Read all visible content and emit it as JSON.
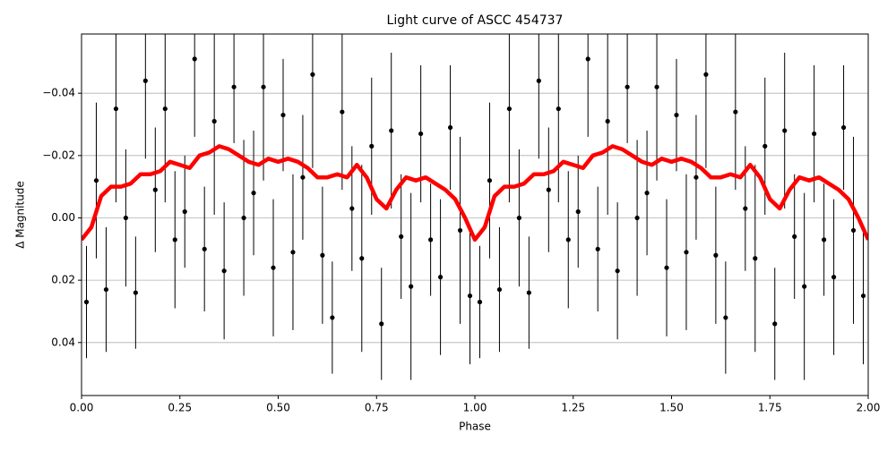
{
  "chart_data": {
    "type": "scatter",
    "title": "Light curve of ASCC 454737",
    "xlabel": "Phase",
    "ylabel": "Δ Magnitude",
    "xlim": [
      0,
      2
    ],
    "ylim": [
      -0.059,
      0.057
    ],
    "invert_y": true,
    "grid": true,
    "xticks": [
      {
        "value": 0,
        "label": "0.00"
      },
      0.25,
      {
        "value": 0.5,
        "label": "0.50"
      },
      0.75,
      {
        "value": 1,
        "label": "1.00"
      },
      1.25,
      {
        "value": 1.5,
        "label": "1.50"
      },
      1.75,
      {
        "value": 2,
        "label": "2.00"
      }
    ],
    "yticks": [
      {
        "value": -0.04,
        "label": "−0.04"
      },
      {
        "value": -0.02,
        "label": "−0.02"
      },
      {
        "value": 0,
        "label": "0.00"
      },
      0.02,
      0.04
    ],
    "points": {
      "color": "#000000",
      "x": [
        0.0125,
        0.0375,
        0.0625,
        0.0875,
        0.1125,
        0.1375,
        0.1625,
        0.1875,
        0.2125,
        0.2375,
        0.2625,
        0.2875,
        0.3125,
        0.3375,
        0.3625,
        0.3875,
        0.4125,
        0.4375,
        0.4625,
        0.4875,
        0.5125,
        0.5375,
        0.5625,
        0.5875,
        0.6125,
        0.6375,
        0.6625,
        0.6875,
        0.7125,
        0.7375,
        0.7625,
        0.7875,
        0.8125,
        0.8375,
        0.8625,
        0.8875,
        0.9125,
        0.9375,
        0.9625,
        0.9875,
        1.0125,
        1.0375,
        1.0625,
        1.0875,
        1.1125,
        1.1375,
        1.1625,
        1.1875,
        1.2125,
        1.2375,
        1.2625,
        1.2875,
        1.3125,
        1.3375,
        1.3625,
        1.3875,
        1.4125,
        1.4375,
        1.4625,
        1.4875,
        1.5125,
        1.5375,
        1.5625,
        1.5875,
        1.6125,
        1.6375,
        1.6625,
        1.6875,
        1.7125,
        1.7375,
        1.7625,
        1.7875,
        1.8125,
        1.8375,
        1.8625,
        1.8875,
        1.9125,
        1.9375,
        1.9625,
        1.9875
      ],
      "values": [
        0.027,
        -0.012,
        0.023,
        -0.035,
        0.0,
        0.024,
        -0.044,
        -0.009,
        -0.035,
        0.007,
        -0.002,
        -0.051,
        0.01,
        -0.031,
        0.017,
        -0.042,
        0.0,
        -0.008,
        -0.042,
        0.016,
        -0.033,
        0.011,
        -0.013,
        -0.046,
        0.012,
        0.032,
        -0.034,
        -0.003,
        0.013,
        -0.023,
        0.034,
        -0.028,
        0.006,
        0.022,
        -0.027,
        0.007,
        0.019,
        -0.029,
        0.004,
        0.025,
        0.027,
        -0.012,
        0.023,
        -0.035,
        0.0,
        0.024,
        -0.044,
        -0.009,
        -0.035,
        0.007,
        -0.002,
        -0.051,
        0.01,
        -0.031,
        0.017,
        -0.042,
        0.0,
        -0.008,
        -0.042,
        0.016,
        -0.033,
        0.011,
        -0.013,
        -0.046,
        0.012,
        0.032,
        -0.034,
        -0.003,
        0.013,
        -0.023,
        0.034,
        -0.028,
        0.006,
        0.022,
        -0.027,
        0.007,
        0.019,
        -0.029,
        0.004,
        0.025
      ],
      "errors": [
        0.018,
        0.025,
        0.02,
        0.03,
        0.022,
        0.018,
        0.025,
        0.02,
        0.03,
        0.022,
        0.018,
        0.025,
        0.02,
        0.03,
        0.022,
        0.018,
        0.025,
        0.02,
        0.03,
        0.022,
        0.018,
        0.025,
        0.02,
        0.03,
        0.022,
        0.018,
        0.025,
        0.02,
        0.03,
        0.022,
        0.018,
        0.025,
        0.02,
        0.03,
        0.022,
        0.018,
        0.025,
        0.02,
        0.03,
        0.022,
        0.018,
        0.025,
        0.02,
        0.03,
        0.022,
        0.018,
        0.025,
        0.02,
        0.03,
        0.022,
        0.018,
        0.025,
        0.02,
        0.03,
        0.022,
        0.018,
        0.025,
        0.02,
        0.03,
        0.022,
        0.018,
        0.025,
        0.02,
        0.03,
        0.022,
        0.018,
        0.025,
        0.02,
        0.03,
        0.022,
        0.018,
        0.025,
        0.02,
        0.03,
        0.022,
        0.018,
        0.025,
        0.02,
        0.03,
        0.022
      ]
    },
    "curve": {
      "color": "#ff0000",
      "x": [
        0,
        0.025,
        0.05,
        0.075,
        0.1,
        0.125,
        0.15,
        0.175,
        0.2,
        0.225,
        0.25,
        0.275,
        0.3,
        0.325,
        0.35,
        0.375,
        0.4,
        0.425,
        0.45,
        0.475,
        0.5,
        0.525,
        0.55,
        0.575,
        0.6,
        0.625,
        0.65,
        0.675,
        0.7,
        0.725,
        0.75,
        0.775,
        0.8,
        0.825,
        0.85,
        0.875,
        0.9,
        0.925,
        0.95,
        0.975,
        1.0,
        1.025,
        1.05,
        1.075,
        1.1,
        1.125,
        1.15,
        1.175,
        1.2,
        1.225,
        1.25,
        1.275,
        1.3,
        1.325,
        1.35,
        1.375,
        1.4,
        1.425,
        1.45,
        1.475,
        1.5,
        1.525,
        1.55,
        1.575,
        1.6,
        1.625,
        1.65,
        1.675,
        1.7,
        1.725,
        1.75,
        1.775,
        1.8,
        1.825,
        1.85,
        1.875,
        1.9,
        1.925,
        1.95,
        1.975,
        2.0
      ],
      "values": [
        0.007,
        0.003,
        -0.007,
        -0.01,
        -0.01,
        -0.011,
        -0.014,
        -0.014,
        -0.015,
        -0.018,
        -0.017,
        -0.016,
        -0.02,
        -0.021,
        -0.023,
        -0.022,
        -0.02,
        -0.018,
        -0.017,
        -0.019,
        -0.018,
        -0.019,
        -0.018,
        -0.016,
        -0.013,
        -0.013,
        -0.014,
        -0.013,
        -0.017,
        -0.013,
        -0.006,
        -0.003,
        -0.009,
        -0.013,
        -0.012,
        -0.013,
        -0.011,
        -0.009,
        -0.006,
        0.0,
        0.007,
        0.003,
        -0.007,
        -0.01,
        -0.01,
        -0.011,
        -0.014,
        -0.014,
        -0.015,
        -0.018,
        -0.017,
        -0.016,
        -0.02,
        -0.021,
        -0.023,
        -0.022,
        -0.02,
        -0.018,
        -0.017,
        -0.019,
        -0.018,
        -0.019,
        -0.018,
        -0.016,
        -0.013,
        -0.013,
        -0.014,
        -0.013,
        -0.017,
        -0.013,
        -0.006,
        -0.003,
        -0.009,
        -0.013,
        -0.012,
        -0.013,
        -0.011,
        -0.009,
        -0.006,
        0.0,
        0.007
      ]
    }
  }
}
